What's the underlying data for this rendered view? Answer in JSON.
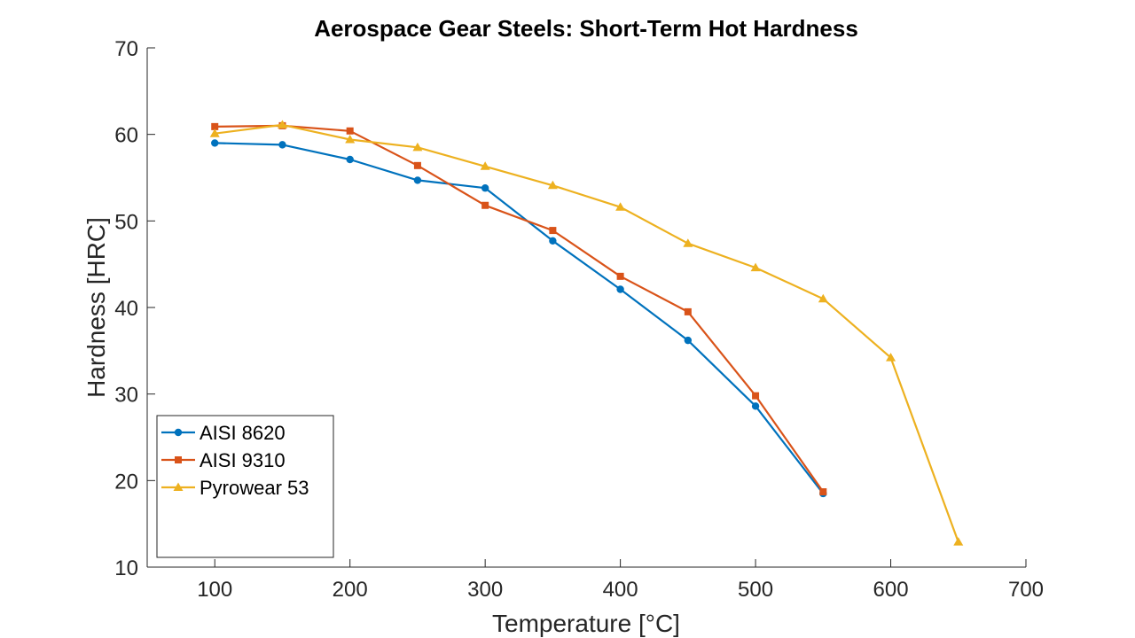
{
  "chart_data": {
    "type": "line",
    "title": "Aerospace Gear Steels: Short-Term Hot Hardness",
    "xlabel": "Temperature [°C]",
    "ylabel": "Hardness [HRC]",
    "xlim": [
      50,
      700
    ],
    "ylim": [
      10,
      70
    ],
    "xticks": [
      100,
      200,
      300,
      400,
      500,
      600,
      700
    ],
    "yticks": [
      10,
      20,
      30,
      40,
      50,
      60,
      70
    ],
    "grid": false,
    "legend_position": "bottom-left",
    "series": [
      {
        "name": "AISI 8620",
        "color": "#0072BD",
        "marker": "circle",
        "x": [
          100,
          150,
          200,
          250,
          300,
          350,
          400,
          450,
          500,
          550
        ],
        "y": [
          59.0,
          58.8,
          57.1,
          54.7,
          53.8,
          47.7,
          42.1,
          36.2,
          28.6,
          18.5
        ]
      },
      {
        "name": "AISI 9310",
        "color": "#D95319",
        "marker": "square",
        "x": [
          100,
          150,
          200,
          250,
          300,
          350,
          400,
          450,
          500,
          550
        ],
        "y": [
          60.9,
          61.0,
          60.4,
          56.4,
          51.8,
          48.9,
          43.6,
          39.5,
          29.8,
          18.7
        ]
      },
      {
        "name": "Pyrowear 53",
        "color": "#EDB120",
        "marker": "triangle",
        "x": [
          100,
          150,
          200,
          250,
          300,
          350,
          400,
          450,
          500,
          550,
          600,
          650
        ],
        "y": [
          60.1,
          61.1,
          59.4,
          58.5,
          56.3,
          54.1,
          51.6,
          47.4,
          44.6,
          41.0,
          34.2,
          12.9
        ]
      }
    ]
  }
}
